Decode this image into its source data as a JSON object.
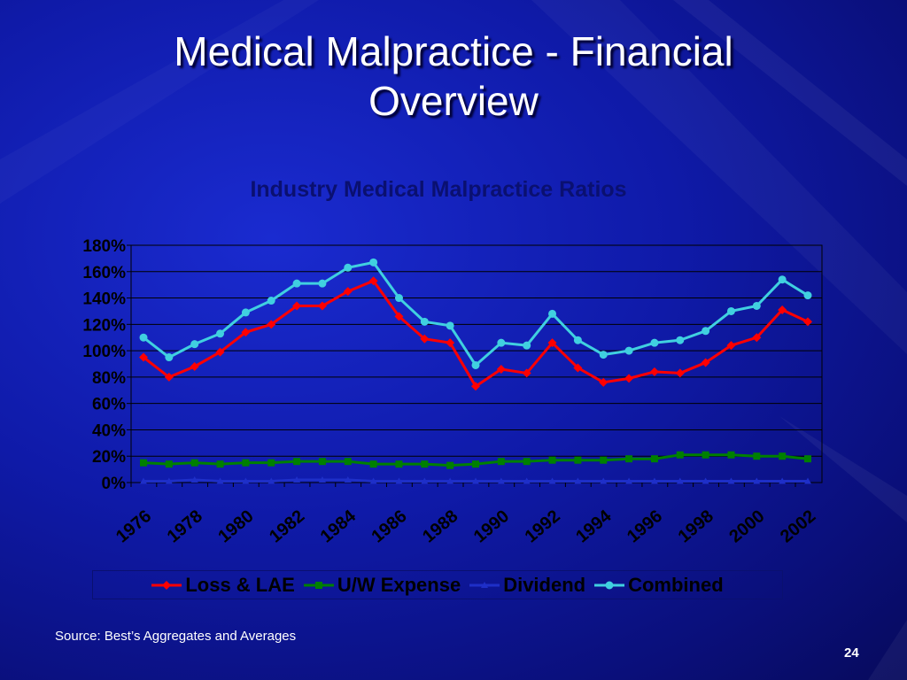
{
  "slide": {
    "title_line1": "Medical Malpractice - Financial",
    "title_line2": "Overview",
    "source": "Source: Best’s Aggregates and Averages",
    "page_number": "24"
  },
  "colors": {
    "background": "#0f1aa8",
    "chart_title": "#0a1070",
    "axis_text": "#000000",
    "gridline": "#000000"
  },
  "chart_data": {
    "type": "line",
    "title": "Industry Medical Malpractice Ratios",
    "xlabel": "",
    "ylabel": "",
    "ylim": [
      0,
      180
    ],
    "y_ticks": [
      "0%",
      "20%",
      "40%",
      "60%",
      "80%",
      "100%",
      "120%",
      "140%",
      "160%",
      "180%"
    ],
    "x_tick_labels": [
      "1976",
      "1978",
      "1980",
      "1982",
      "1984",
      "1986",
      "1988",
      "1990",
      "1992",
      "1994",
      "1996",
      "1998",
      "2000",
      "2002"
    ],
    "x": [
      1976,
      1977,
      1978,
      1979,
      1980,
      1981,
      1982,
      1983,
      1984,
      1985,
      1986,
      1987,
      1988,
      1989,
      1990,
      1991,
      1992,
      1993,
      1994,
      1995,
      1996,
      1997,
      1998,
      1999,
      2000,
      2001,
      2002
    ],
    "grid": true,
    "legend_position": "bottom",
    "series": [
      {
        "name": "Loss & LAE",
        "color": "#ff0000",
        "marker": "diamond",
        "values": [
          95,
          80,
          88,
          99,
          114,
          120,
          134,
          134,
          145,
          153,
          126,
          109,
          106,
          73,
          86,
          83,
          106,
          87,
          76,
          79,
          84,
          83,
          91,
          104,
          110,
          131,
          122
        ]
      },
      {
        "name": "U/W Expense",
        "color": "#008000",
        "marker": "square",
        "values": [
          15,
          14,
          15,
          14,
          15,
          15,
          16,
          16,
          16,
          14,
          14,
          14,
          13,
          14,
          16,
          16,
          17,
          17,
          17,
          18,
          18,
          21,
          21,
          21,
          20,
          20,
          18
        ]
      },
      {
        "name": "Dividend",
        "color": "#1e2fc8",
        "marker": "triangle",
        "values": [
          1,
          1,
          2,
          1,
          1,
          1,
          2,
          2,
          2,
          1,
          1,
          1,
          1,
          1,
          1,
          1,
          1,
          1,
          1,
          1,
          1,
          1,
          1,
          1,
          1,
          1,
          1
        ]
      },
      {
        "name": "Combined",
        "color": "#40d0e0",
        "marker": "circle",
        "values": [
          110,
          95,
          105,
          113,
          129,
          138,
          151,
          151,
          163,
          167,
          140,
          122,
          119,
          89,
          106,
          104,
          128,
          108,
          97,
          100,
          106,
          108,
          115,
          130,
          134,
          154,
          142
        ]
      }
    ]
  }
}
